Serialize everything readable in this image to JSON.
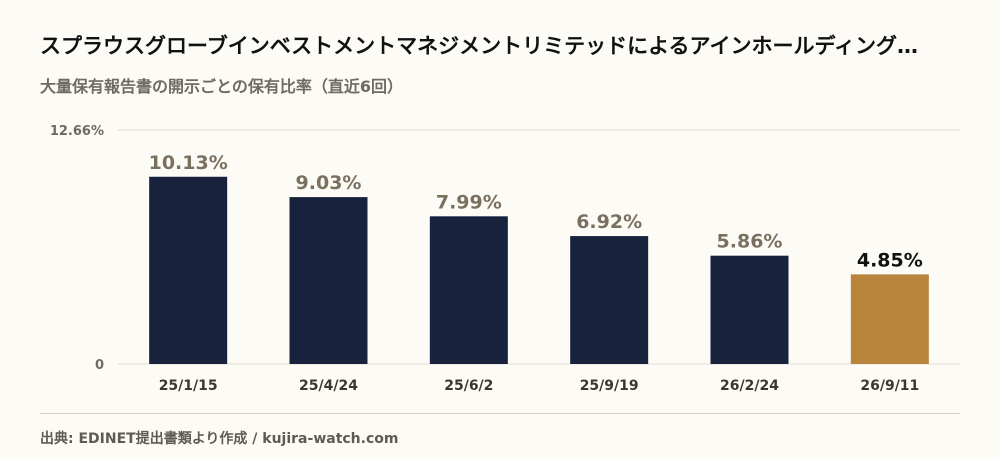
{
  "title": "スプラウスグローブインベストメントマネジメントリミテッドによるアインホールディング…",
  "subtitle": "大量保有報告書の開示ごとの保有比率（直近6回）",
  "source": "出典: EDINET提出書類より作成 / kujira-watch.com",
  "chart_data": {
    "type": "bar",
    "categories": [
      "25/1/15",
      "25/4/24",
      "25/6/2",
      "25/9/19",
      "26/2/24",
      "26/9/11"
    ],
    "values": [
      10.13,
      9.03,
      7.99,
      6.92,
      5.86,
      4.85
    ],
    "value_labels": [
      "10.13%",
      "9.03%",
      "7.99%",
      "6.92%",
      "5.86%",
      "4.85%"
    ],
    "ylim": [
      0,
      12.66
    ],
    "y_ticks": [
      {
        "value": 0,
        "label": "0"
      },
      {
        "value": 12.66,
        "label": "12.66%"
      }
    ],
    "grid": true,
    "colors": {
      "bar": "#18223c",
      "highlight": "#b9853c",
      "grid": "#e3ddcf",
      "label": "#7a7060",
      "highlight_label": "#111111"
    },
    "highlight_index": 5
  }
}
